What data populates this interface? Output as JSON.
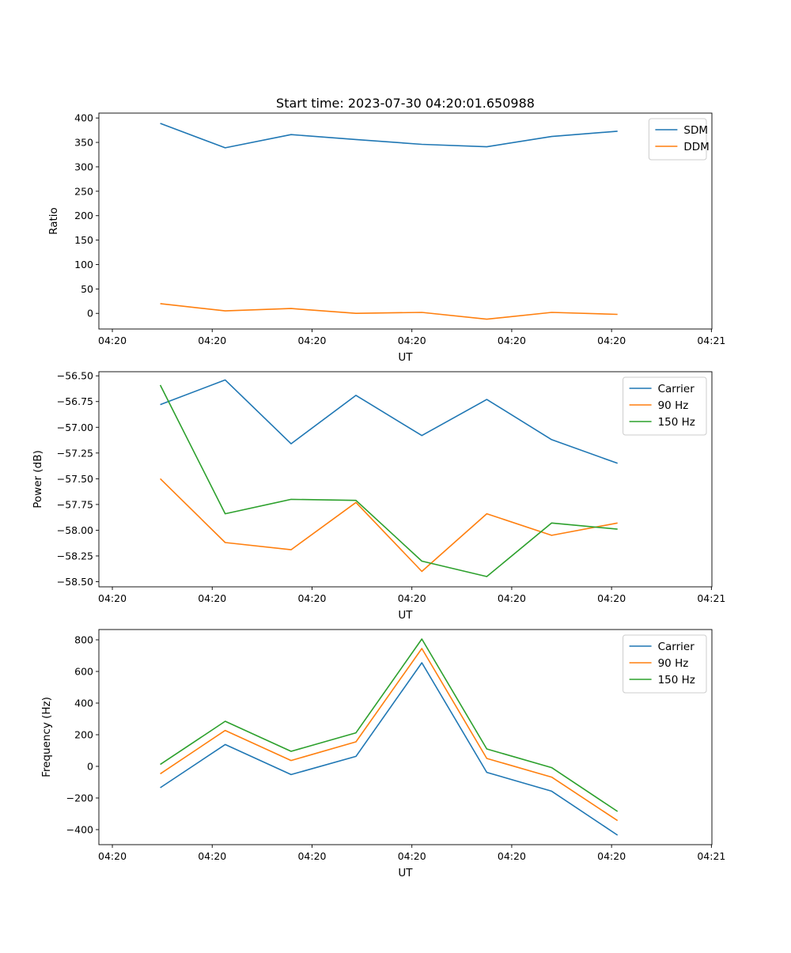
{
  "chart_data": [
    {
      "type": "line",
      "title": "Start time: 2023-07-30 04:20:01.650988",
      "xlabel": "UT",
      "ylabel": "Ratio",
      "x_unit": "seconds after 04:20:00",
      "x": [
        4.8,
        11.3,
        17.9,
        24.4,
        31.0,
        37.5,
        44.0,
        50.6
      ],
      "xlim": [
        -1.35,
        60.05
      ],
      "xticks": [
        0,
        10,
        20,
        30,
        40,
        50,
        60
      ],
      "xtick_labels": [
        "04:20",
        "04:20",
        "04:20",
        "04:20",
        "04:20",
        "04:20",
        "04:21"
      ],
      "ylim": [
        -32,
        410
      ],
      "yticks": [
        0,
        50,
        100,
        150,
        200,
        250,
        300,
        350,
        400
      ],
      "ytick_labels": [
        "0",
        "50",
        "100",
        "150",
        "200",
        "250",
        "300",
        "350",
        "400"
      ],
      "legend": "top-right",
      "series": [
        {
          "name": "SDM",
          "color": "#1f77b4",
          "values": [
            389,
            339,
            366,
            356,
            346,
            341,
            362,
            373
          ]
        },
        {
          "name": "DDM",
          "color": "#ff7f0e",
          "values": [
            20,
            5,
            10,
            0,
            2,
            -12,
            2,
            -2
          ]
        }
      ]
    },
    {
      "type": "line",
      "title": "",
      "xlabel": "UT",
      "ylabel": "Power (dB)",
      "x_unit": "seconds after 04:20:00",
      "x": [
        4.8,
        11.3,
        17.9,
        24.4,
        31.0,
        37.5,
        44.0,
        50.6
      ],
      "xlim": [
        -1.35,
        60.05
      ],
      "xticks": [
        0,
        10,
        20,
        30,
        40,
        50,
        60
      ],
      "xtick_labels": [
        "04:20",
        "04:20",
        "04:20",
        "04:20",
        "04:20",
        "04:20",
        "04:21"
      ],
      "ylim": [
        -58.55,
        -56.46
      ],
      "yticks": [
        -58.5,
        -58.25,
        -58.0,
        -57.75,
        -57.5,
        -57.25,
        -57.0,
        -56.75,
        -56.5
      ],
      "ytick_labels": [
        "−58.50",
        "−58.25",
        "−58.00",
        "−57.75",
        "−57.50",
        "−57.25",
        "−57.00",
        "−56.75",
        "−56.50"
      ],
      "legend": "top-right",
      "series": [
        {
          "name": "Carrier",
          "color": "#1f77b4",
          "values": [
            -56.78,
            -56.54,
            -57.16,
            -56.69,
            -57.08,
            -56.73,
            -57.12,
            -57.35
          ]
        },
        {
          "name": "90 Hz",
          "color": "#ff7f0e",
          "values": [
            -57.5,
            -58.12,
            -58.19,
            -57.73,
            -58.4,
            -57.84,
            -58.05,
            -57.93
          ]
        },
        {
          "name": "150 Hz",
          "color": "#2ca02c",
          "values": [
            -56.59,
            -57.84,
            -57.7,
            -57.71,
            -58.3,
            -58.45,
            -57.93,
            -57.99
          ]
        }
      ]
    },
    {
      "type": "line",
      "title": "",
      "xlabel": "UT",
      "ylabel": "Frequency (Hz)",
      "x_unit": "seconds after 04:20:00",
      "x": [
        4.8,
        11.3,
        17.9,
        24.4,
        31.0,
        37.5,
        44.0,
        50.6
      ],
      "xlim": [
        -1.35,
        60.05
      ],
      "xticks": [
        0,
        10,
        20,
        30,
        40,
        50,
        60
      ],
      "xtick_labels": [
        "04:20",
        "04:20",
        "04:20",
        "04:20",
        "04:20",
        "04:20",
        "04:21"
      ],
      "ylim": [
        -495,
        865
      ],
      "yticks": [
        -400,
        -200,
        0,
        200,
        400,
        600,
        800
      ],
      "ytick_labels": [
        "−400",
        "−200",
        "0",
        "200",
        "400",
        "600",
        "800"
      ],
      "legend": "top-right",
      "series": [
        {
          "name": "Carrier",
          "color": "#1f77b4",
          "values": [
            -135,
            138,
            -52,
            63,
            655,
            -38,
            -157,
            -435
          ]
        },
        {
          "name": "90 Hz",
          "color": "#ff7f0e",
          "values": [
            -47,
            227,
            37,
            155,
            745,
            50,
            -68,
            -343
          ]
        },
        {
          "name": "150 Hz",
          "color": "#2ca02c",
          "values": [
            12,
            285,
            95,
            212,
            805,
            110,
            -8,
            -285
          ]
        }
      ]
    }
  ]
}
